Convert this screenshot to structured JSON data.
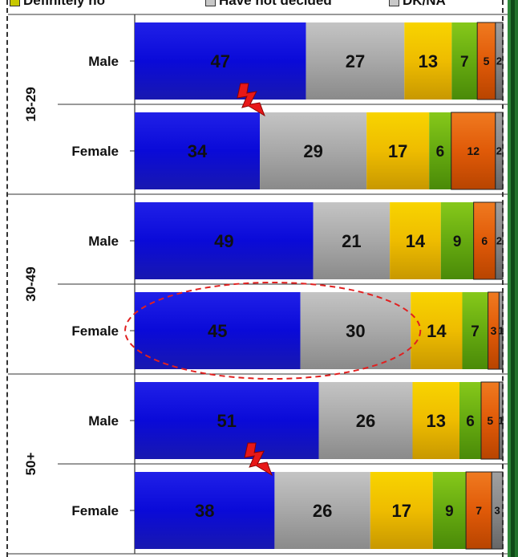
{
  "chart_data": {
    "type": "bar",
    "orientation": "horizontal",
    "stacked": "percent",
    "legend_position": "top",
    "legend_visible": [
      {
        "text": "Definitely no",
        "color": "#c8c800"
      },
      {
        "text": "Have not decided",
        "color": "#c8c8c8"
      },
      {
        "text": "DK/NA",
        "color": "#c8c8c8"
      }
    ],
    "groups": [
      {
        "label": "18-29",
        "rows": [
          {
            "label": "Male",
            "values": [
              47,
              27,
              13,
              7,
              5,
              2
            ]
          },
          {
            "label": "Female",
            "values": [
              34,
              29,
              17,
              6,
              12,
              2
            ]
          }
        ]
      },
      {
        "label": "30-49",
        "rows": [
          {
            "label": "Male",
            "values": [
              49,
              21,
              14,
              9,
              6,
              2
            ]
          },
          {
            "label": "Female",
            "values": [
              45,
              30,
              14,
              7,
              3,
              1
            ]
          }
        ]
      },
      {
        "label": "50+",
        "rows": [
          {
            "label": "Male",
            "values": [
              51,
              26,
              13,
              6,
              5,
              1
            ]
          },
          {
            "label": "Female",
            "values": [
              38,
              26,
              17,
              9,
              7,
              3
            ]
          }
        ]
      }
    ],
    "series_colors": [
      "#1010d0",
      "#a8a8a8",
      "#f0c000",
      "#6aae10",
      "#e06010",
      "#888888"
    ],
    "highlight": {
      "group": 1,
      "row": 1,
      "series": [
        0,
        1
      ]
    },
    "markers": [
      {
        "group": 0,
        "row": 0,
        "type": "lightning"
      },
      {
        "group": 2,
        "row": 0,
        "type": "lightning"
      }
    ]
  }
}
